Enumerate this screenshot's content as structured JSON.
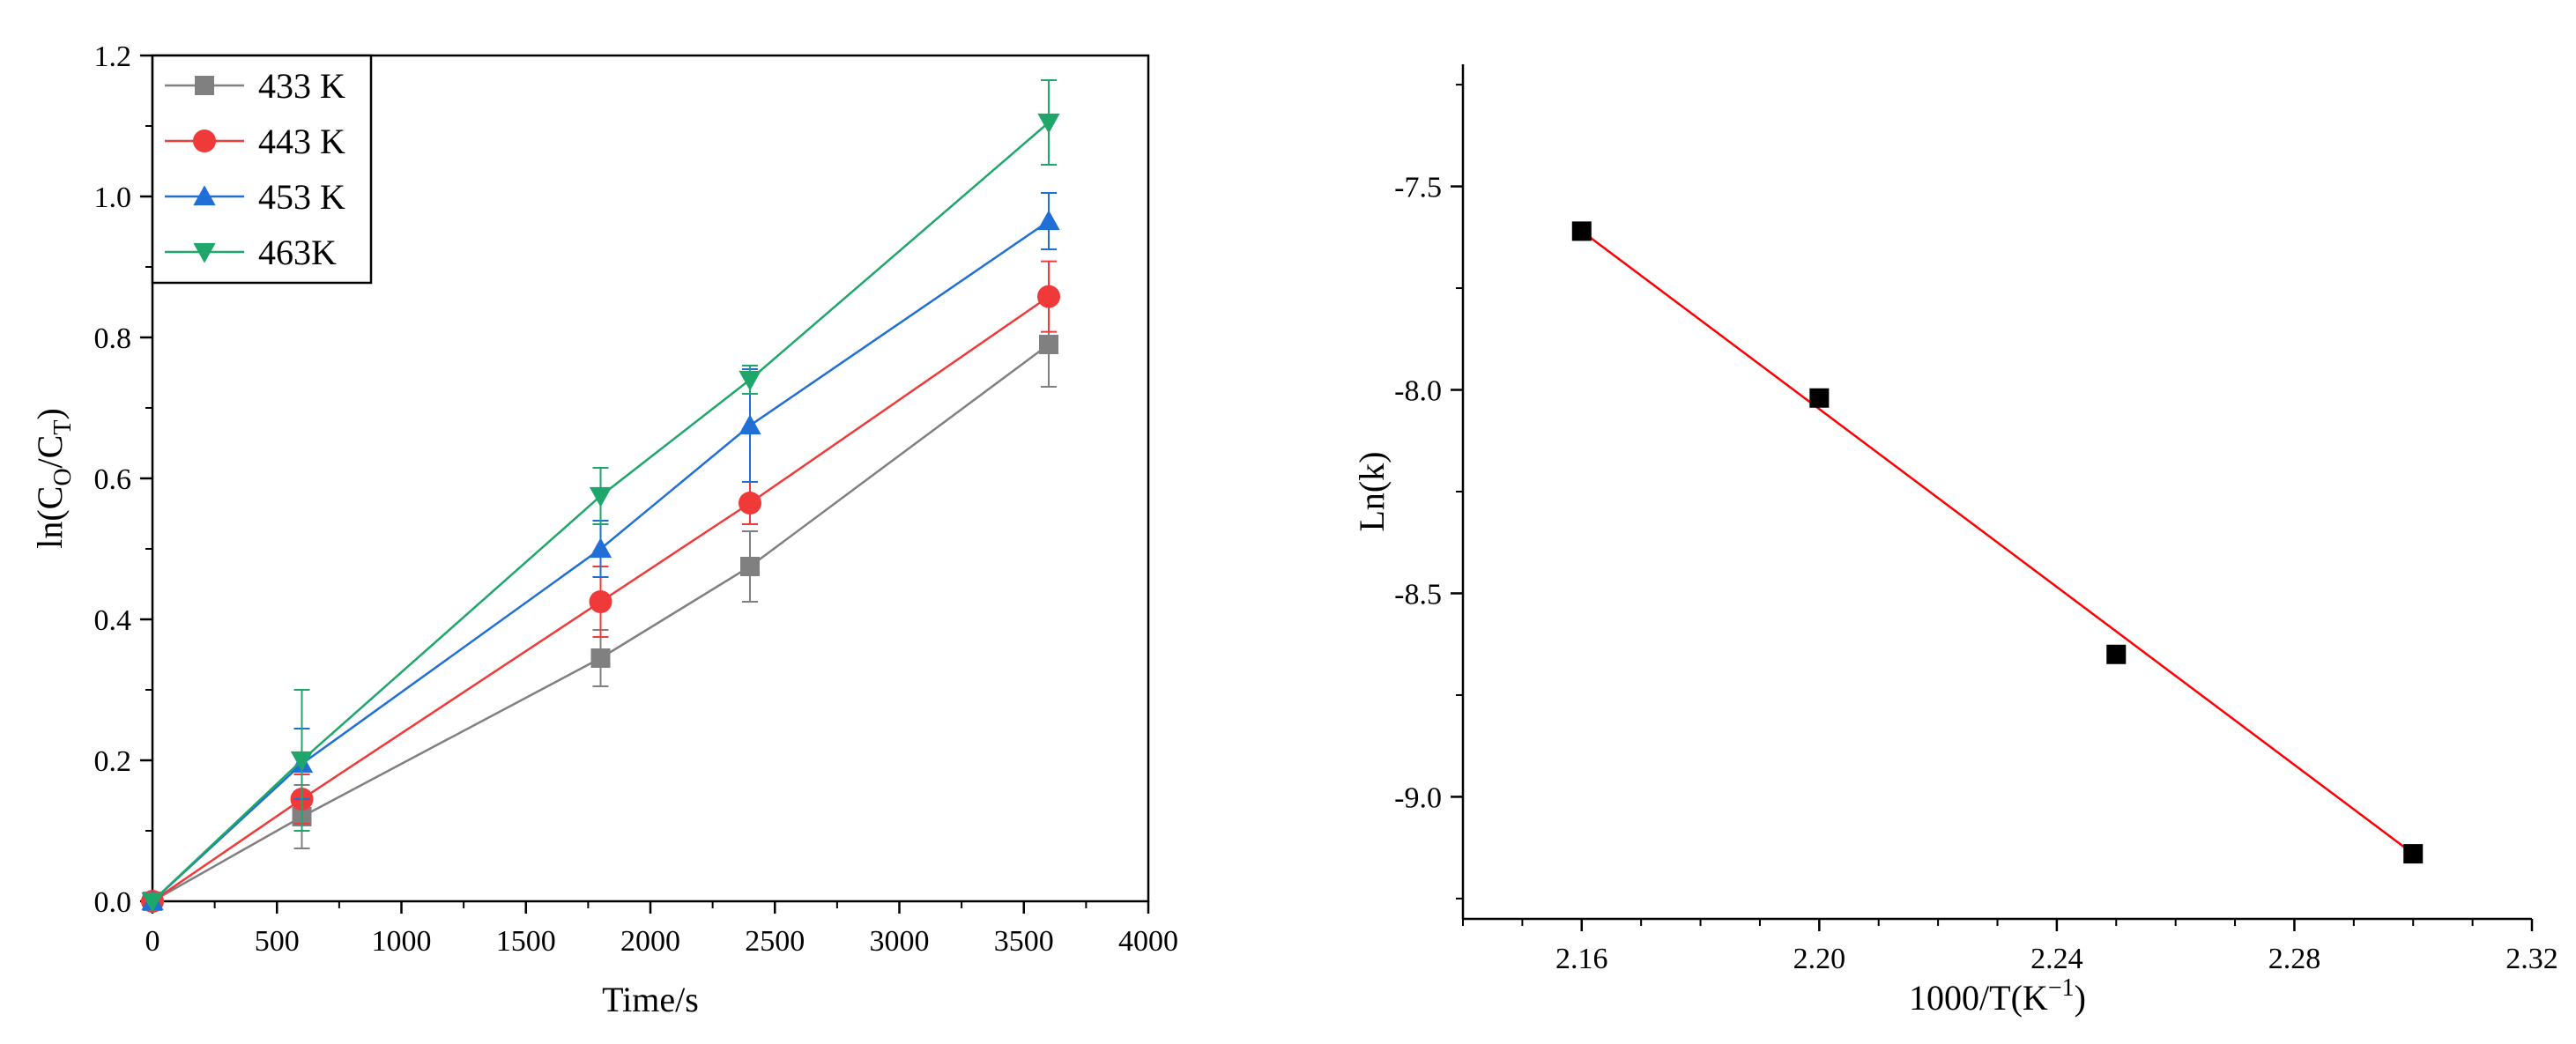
{
  "chart_data": [
    {
      "type": "line",
      "title": "",
      "xlabel": "Time/s",
      "ylabel_parts": [
        "ln(C",
        "O",
        "/C",
        "T",
        ")"
      ],
      "xlim": [
        0,
        4000
      ],
      "ylim": [
        0,
        1.2
      ],
      "x_ticks": [
        "0",
        "500",
        "1000",
        "1500",
        "2000",
        "2500",
        "3000",
        "3500",
        "4000"
      ],
      "y_ticks": [
        "0.0",
        "0.2",
        "0.4",
        "0.6",
        "0.8",
        "1.0",
        "1.2"
      ],
      "legend_position": "top-left",
      "x": [
        0,
        600,
        1800,
        2400,
        3600
      ],
      "series": [
        {
          "name": "433 K",
          "color": "#808080",
          "marker": "square",
          "values": [
            0,
            0.12,
            0.345,
            0.475,
            0.79
          ],
          "errors": [
            0,
            0.045,
            0.04,
            0.05,
            0.06
          ]
        },
        {
          "name": "443 K",
          "color": "#f03a3a",
          "marker": "circle",
          "values": [
            0,
            0.145,
            0.425,
            0.565,
            0.858
          ],
          "errors": [
            0,
            0.035,
            0.05,
            0.03,
            0.05
          ]
        },
        {
          "name": "453 K",
          "color": "#1f6fd6",
          "marker": "triangle-up",
          "values": [
            0,
            0.195,
            0.5,
            0.675,
            0.965
          ],
          "errors": [
            0,
            0.05,
            0.04,
            0.08,
            0.04
          ]
        },
        {
          "name": "463K",
          "color": "#1fa66b",
          "marker": "triangle-down",
          "values": [
            0,
            0.2,
            0.575,
            0.74,
            1.105
          ],
          "errors": [
            0,
            0.1,
            0.04,
            0.02,
            0.06
          ]
        }
      ]
    },
    {
      "type": "scatter",
      "title": "",
      "xlabel": "1000/T(K",
      "xlabel_sup": "−1",
      "xlabel_close": ")",
      "ylabel": "Ln(k)",
      "xlim": [
        2.14,
        2.32
      ],
      "ylim": [
        -9.3,
        -7.2
      ],
      "x_ticks": [
        2.16,
        2.2,
        2.24,
        2.28,
        2.32
      ],
      "x_tick_labels": [
        "2.16",
        "2.20",
        "2.24",
        "2.28",
        "2.32"
      ],
      "y_ticks": [
        -7.5,
        -8.0,
        -8.5,
        -9.0
      ],
      "y_tick_labels": [
        "-7.5",
        "-8.0",
        "-8.5",
        "-9.0"
      ],
      "points_x": [
        2.16,
        2.2,
        2.25,
        2.3
      ],
      "points_y": [
        -7.61,
        -8.02,
        -8.65,
        -9.14
      ],
      "fit_line": {
        "x": [
          2.16,
          2.3
        ],
        "y": [
          -7.61,
          -9.14
        ],
        "color": "#ff0000"
      },
      "marker_color": "#000000"
    }
  ]
}
